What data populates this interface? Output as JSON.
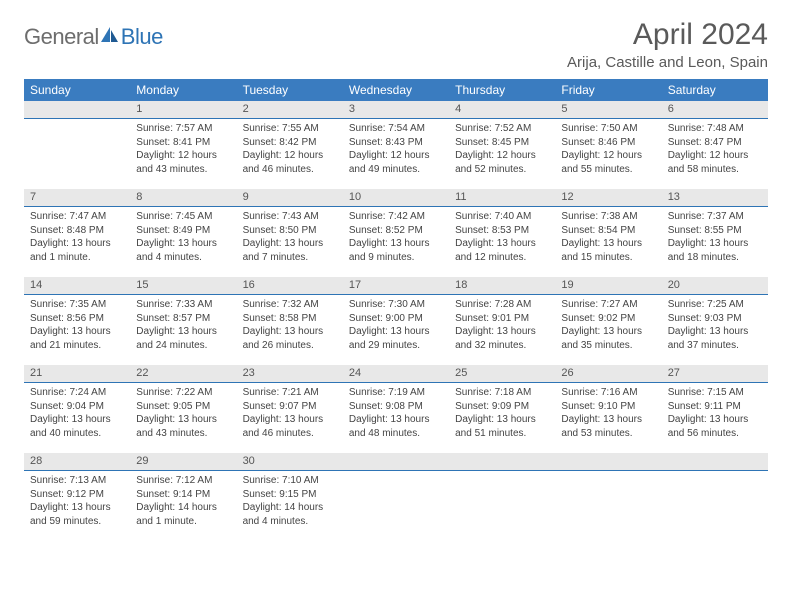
{
  "logo": {
    "general": "General",
    "blue": "Blue"
  },
  "title": "April 2024",
  "location": "Arija, Castille and Leon, Spain",
  "colors": {
    "header_bg": "#3a7cc0",
    "header_text": "#ffffff",
    "daynum_bg": "#e8e8e8",
    "daynum_border": "#2e74b5",
    "logo_gray": "#6d6d6d",
    "logo_blue": "#2e74b5",
    "body_text": "#444444"
  },
  "weekdays": [
    "Sunday",
    "Monday",
    "Tuesday",
    "Wednesday",
    "Thursday",
    "Friday",
    "Saturday"
  ],
  "weeks": [
    [
      {
        "n": "",
        "sunrise": "",
        "sunset": "",
        "daylight": ""
      },
      {
        "n": "1",
        "sunrise": "Sunrise: 7:57 AM",
        "sunset": "Sunset: 8:41 PM",
        "daylight": "Daylight: 12 hours and 43 minutes."
      },
      {
        "n": "2",
        "sunrise": "Sunrise: 7:55 AM",
        "sunset": "Sunset: 8:42 PM",
        "daylight": "Daylight: 12 hours and 46 minutes."
      },
      {
        "n": "3",
        "sunrise": "Sunrise: 7:54 AM",
        "sunset": "Sunset: 8:43 PM",
        "daylight": "Daylight: 12 hours and 49 minutes."
      },
      {
        "n": "4",
        "sunrise": "Sunrise: 7:52 AM",
        "sunset": "Sunset: 8:45 PM",
        "daylight": "Daylight: 12 hours and 52 minutes."
      },
      {
        "n": "5",
        "sunrise": "Sunrise: 7:50 AM",
        "sunset": "Sunset: 8:46 PM",
        "daylight": "Daylight: 12 hours and 55 minutes."
      },
      {
        "n": "6",
        "sunrise": "Sunrise: 7:48 AM",
        "sunset": "Sunset: 8:47 PM",
        "daylight": "Daylight: 12 hours and 58 minutes."
      }
    ],
    [
      {
        "n": "7",
        "sunrise": "Sunrise: 7:47 AM",
        "sunset": "Sunset: 8:48 PM",
        "daylight": "Daylight: 13 hours and 1 minute."
      },
      {
        "n": "8",
        "sunrise": "Sunrise: 7:45 AM",
        "sunset": "Sunset: 8:49 PM",
        "daylight": "Daylight: 13 hours and 4 minutes."
      },
      {
        "n": "9",
        "sunrise": "Sunrise: 7:43 AM",
        "sunset": "Sunset: 8:50 PM",
        "daylight": "Daylight: 13 hours and 7 minutes."
      },
      {
        "n": "10",
        "sunrise": "Sunrise: 7:42 AM",
        "sunset": "Sunset: 8:52 PM",
        "daylight": "Daylight: 13 hours and 9 minutes."
      },
      {
        "n": "11",
        "sunrise": "Sunrise: 7:40 AM",
        "sunset": "Sunset: 8:53 PM",
        "daylight": "Daylight: 13 hours and 12 minutes."
      },
      {
        "n": "12",
        "sunrise": "Sunrise: 7:38 AM",
        "sunset": "Sunset: 8:54 PM",
        "daylight": "Daylight: 13 hours and 15 minutes."
      },
      {
        "n": "13",
        "sunrise": "Sunrise: 7:37 AM",
        "sunset": "Sunset: 8:55 PM",
        "daylight": "Daylight: 13 hours and 18 minutes."
      }
    ],
    [
      {
        "n": "14",
        "sunrise": "Sunrise: 7:35 AM",
        "sunset": "Sunset: 8:56 PM",
        "daylight": "Daylight: 13 hours and 21 minutes."
      },
      {
        "n": "15",
        "sunrise": "Sunrise: 7:33 AM",
        "sunset": "Sunset: 8:57 PM",
        "daylight": "Daylight: 13 hours and 24 minutes."
      },
      {
        "n": "16",
        "sunrise": "Sunrise: 7:32 AM",
        "sunset": "Sunset: 8:58 PM",
        "daylight": "Daylight: 13 hours and 26 minutes."
      },
      {
        "n": "17",
        "sunrise": "Sunrise: 7:30 AM",
        "sunset": "Sunset: 9:00 PM",
        "daylight": "Daylight: 13 hours and 29 minutes."
      },
      {
        "n": "18",
        "sunrise": "Sunrise: 7:28 AM",
        "sunset": "Sunset: 9:01 PM",
        "daylight": "Daylight: 13 hours and 32 minutes."
      },
      {
        "n": "19",
        "sunrise": "Sunrise: 7:27 AM",
        "sunset": "Sunset: 9:02 PM",
        "daylight": "Daylight: 13 hours and 35 minutes."
      },
      {
        "n": "20",
        "sunrise": "Sunrise: 7:25 AM",
        "sunset": "Sunset: 9:03 PM",
        "daylight": "Daylight: 13 hours and 37 minutes."
      }
    ],
    [
      {
        "n": "21",
        "sunrise": "Sunrise: 7:24 AM",
        "sunset": "Sunset: 9:04 PM",
        "daylight": "Daylight: 13 hours and 40 minutes."
      },
      {
        "n": "22",
        "sunrise": "Sunrise: 7:22 AM",
        "sunset": "Sunset: 9:05 PM",
        "daylight": "Daylight: 13 hours and 43 minutes."
      },
      {
        "n": "23",
        "sunrise": "Sunrise: 7:21 AM",
        "sunset": "Sunset: 9:07 PM",
        "daylight": "Daylight: 13 hours and 46 minutes."
      },
      {
        "n": "24",
        "sunrise": "Sunrise: 7:19 AM",
        "sunset": "Sunset: 9:08 PM",
        "daylight": "Daylight: 13 hours and 48 minutes."
      },
      {
        "n": "25",
        "sunrise": "Sunrise: 7:18 AM",
        "sunset": "Sunset: 9:09 PM",
        "daylight": "Daylight: 13 hours and 51 minutes."
      },
      {
        "n": "26",
        "sunrise": "Sunrise: 7:16 AM",
        "sunset": "Sunset: 9:10 PM",
        "daylight": "Daylight: 13 hours and 53 minutes."
      },
      {
        "n": "27",
        "sunrise": "Sunrise: 7:15 AM",
        "sunset": "Sunset: 9:11 PM",
        "daylight": "Daylight: 13 hours and 56 minutes."
      }
    ],
    [
      {
        "n": "28",
        "sunrise": "Sunrise: 7:13 AM",
        "sunset": "Sunset: 9:12 PM",
        "daylight": "Daylight: 13 hours and 59 minutes."
      },
      {
        "n": "29",
        "sunrise": "Sunrise: 7:12 AM",
        "sunset": "Sunset: 9:14 PM",
        "daylight": "Daylight: 14 hours and 1 minute."
      },
      {
        "n": "30",
        "sunrise": "Sunrise: 7:10 AM",
        "sunset": "Sunset: 9:15 PM",
        "daylight": "Daylight: 14 hours and 4 minutes."
      },
      {
        "n": "",
        "sunrise": "",
        "sunset": "",
        "daylight": ""
      },
      {
        "n": "",
        "sunrise": "",
        "sunset": "",
        "daylight": ""
      },
      {
        "n": "",
        "sunrise": "",
        "sunset": "",
        "daylight": ""
      },
      {
        "n": "",
        "sunrise": "",
        "sunset": "",
        "daylight": ""
      }
    ]
  ]
}
